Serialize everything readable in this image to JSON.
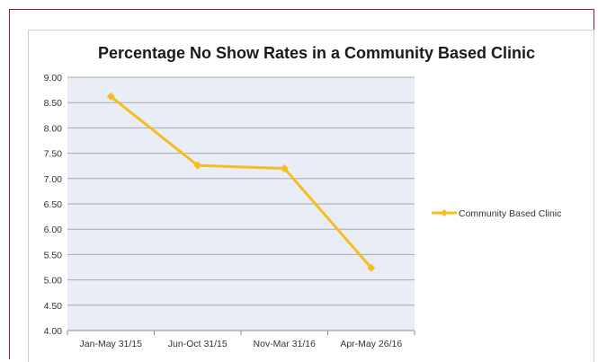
{
  "chart_data": {
    "type": "line",
    "title": "Percentage No Show Rates in a Community Based Clinic",
    "xlabel": "",
    "ylabel": "",
    "categories": [
      "Jan-May 31/15",
      "Jun-Oct 31/15",
      "Nov-Mar 31/16",
      "Apr-May 26/16"
    ],
    "series": [
      {
        "name": "Community Based Clinic",
        "values": [
          8.62,
          7.26,
          7.2,
          5.24
        ]
      }
    ],
    "y_ticks": [
      "4.00",
      "4.50",
      "5.00",
      "5.50",
      "6.00",
      "6.50",
      "7.00",
      "7.50",
      "8.00",
      "8.50",
      "9.00"
    ],
    "ylim": [
      4.0,
      9.0
    ],
    "grid": true,
    "legend_position": "right",
    "colors": {
      "series": "#f5be1e",
      "plot_background": "#e9eef6",
      "gridline": "#a8a8a8",
      "frame": "#8e1b4a"
    }
  }
}
